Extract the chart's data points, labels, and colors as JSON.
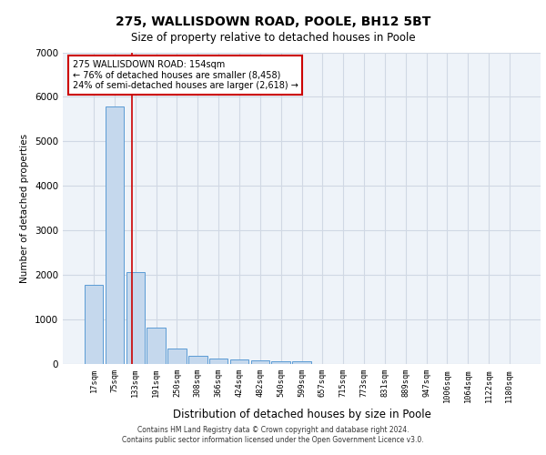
{
  "title_line1": "275, WALLISDOWN ROAD, POOLE, BH12 5BT",
  "title_line2": "Size of property relative to detached houses in Poole",
  "xlabel": "Distribution of detached houses by size in Poole",
  "ylabel": "Number of detached properties",
  "bar_labels": [
    "17sqm",
    "75sqm",
    "133sqm",
    "191sqm",
    "250sqm",
    "308sqm",
    "366sqm",
    "424sqm",
    "482sqm",
    "540sqm",
    "599sqm",
    "657sqm",
    "715sqm",
    "773sqm",
    "831sqm",
    "889sqm",
    "947sqm",
    "1006sqm",
    "1064sqm",
    "1122sqm",
    "1180sqm"
  ],
  "bar_values": [
    1780,
    5780,
    2060,
    820,
    340,
    185,
    120,
    105,
    90,
    70,
    55,
    0,
    0,
    0,
    0,
    0,
    0,
    0,
    0,
    0,
    0
  ],
  "bar_color": "#c5d8ed",
  "bar_edge_color": "#5b9bd5",
  "grid_color": "#d0d8e4",
  "background_color": "#eef3f9",
  "annotation_text": "275 WALLISDOWN ROAD: 154sqm\n← 76% of detached houses are smaller (8,458)\n24% of semi-detached houses are larger (2,618) →",
  "annotation_box_color": "#ffffff",
  "annotation_box_edge_color": "#cc0000",
  "red_line_x": 1.82,
  "ylim": [
    0,
    7000
  ],
  "yticks": [
    0,
    1000,
    2000,
    3000,
    4000,
    5000,
    6000,
    7000
  ],
  "footer_line1": "Contains HM Land Registry data © Crown copyright and database right 2024.",
  "footer_line2": "Contains public sector information licensed under the Open Government Licence v3.0."
}
